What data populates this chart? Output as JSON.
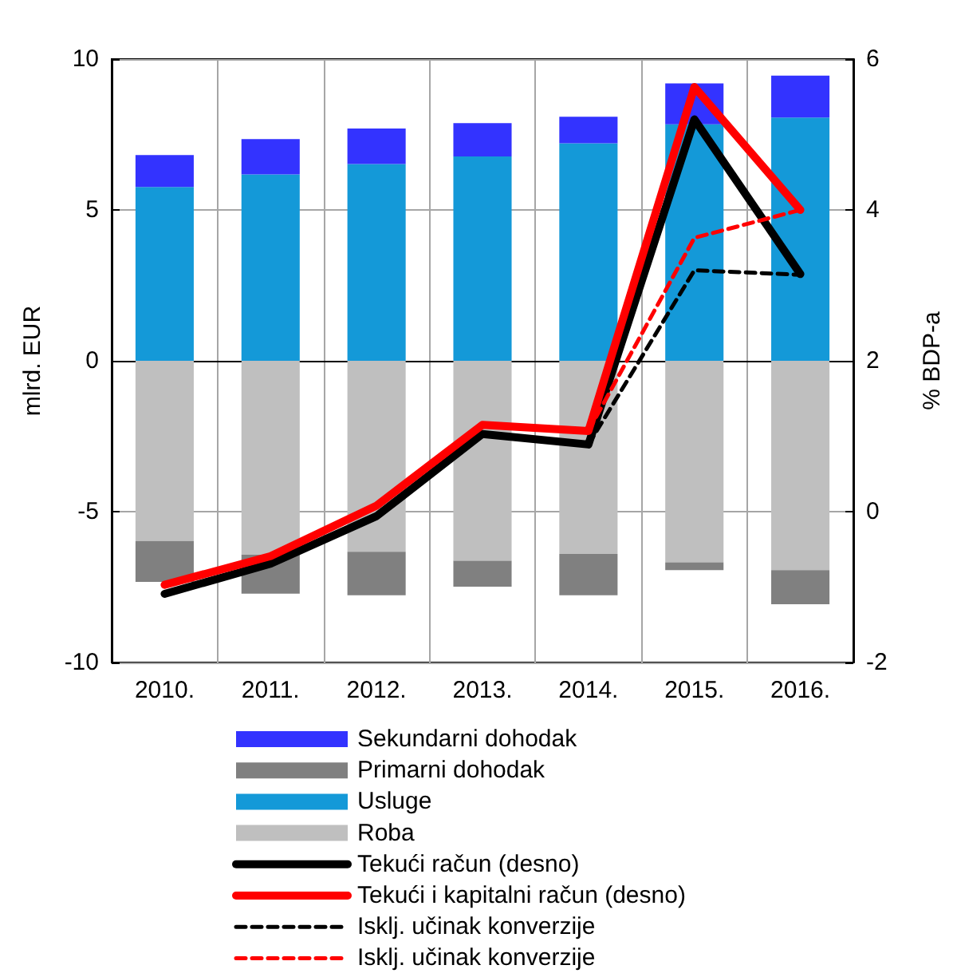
{
  "chart_data": {
    "type": "bar",
    "stacked": true,
    "ylabel": "mlrd. EUR",
    "y2label": "% BDP-a",
    "categories": [
      "2010.",
      "2011.",
      "2012.",
      "2013.",
      "2014.",
      "2015.",
      "2016."
    ],
    "ylim": [
      -10,
      10
    ],
    "yticks": [
      -10,
      -5,
      0,
      5,
      10
    ],
    "y2lim": [
      -2,
      6
    ],
    "y2ticks": [
      -2,
      0,
      2,
      4,
      6
    ],
    "grid": true,
    "legend": "bottom",
    "marker": "none",
    "series": [
      {
        "name": "Roba",
        "color": "#bfbfbf",
        "values": [
          -5.97,
          -6.43,
          -6.33,
          -6.63,
          -6.4,
          -6.68,
          -6.94
        ]
      },
      {
        "name": "Usluge",
        "color": "#1499d8",
        "values": [
          5.76,
          6.18,
          6.52,
          6.77,
          7.21,
          7.84,
          8.06
        ]
      },
      {
        "name": "Primarni dohodak",
        "color": "#808080",
        "values": [
          -1.36,
          -1.29,
          -1.44,
          -0.86,
          -1.37,
          -0.26,
          -1.13
        ]
      },
      {
        "name": "Sekundarni dohodak",
        "color": "#3333ff",
        "values": [
          1.06,
          1.17,
          1.18,
          1.11,
          0.88,
          1.35,
          1.39
        ]
      },
      {
        "name": "Tekući račun (desno)",
        "type": "line",
        "axis": "y2",
        "color": "#000000",
        "line_style": "solid",
        "values": [
          -1.09,
          -0.69,
          -0.06,
          1.03,
          0.89,
          5.2,
          3.15
        ]
      },
      {
        "name": "Tekući i kapitalni račun (desno)",
        "type": "line",
        "axis": "y2",
        "color": "#ff0000",
        "line_style": "solid",
        "values": [
          -0.97,
          -0.59,
          0.08,
          1.15,
          1.07,
          5.63,
          4.0
        ]
      },
      {
        "name": "Isklj. učinak konverzije",
        "type": "line",
        "axis": "y2",
        "color": "#000000",
        "line_style": "dashed",
        "values": [
          null,
          null,
          null,
          null,
          0.89,
          3.2,
          3.14
        ]
      },
      {
        "name": "Isklj. učinak konverzije",
        "type": "line",
        "axis": "y2",
        "color": "#ff0000",
        "line_style": "dashed",
        "values": [
          null,
          null,
          null,
          null,
          1.07,
          3.63,
          4.0
        ]
      }
    ]
  }
}
